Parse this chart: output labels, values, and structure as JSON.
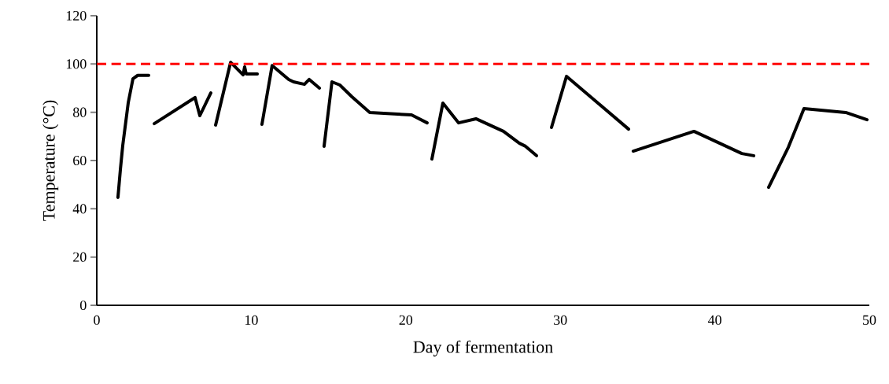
{
  "chart_data": {
    "type": "line",
    "xlabel": "Day of fermentation",
    "ylabel": "Temperature (°C)",
    "xlim": [
      0,
      50
    ],
    "ylim": [
      0,
      120
    ],
    "xticks": [
      0,
      10,
      20,
      30,
      40,
      50
    ],
    "yticks": [
      0,
      20,
      40,
      60,
      80,
      100,
      120
    ],
    "grid": false,
    "marker": "none",
    "line_style": "solid",
    "series": [
      {
        "color": "#000000",
        "x": [
          1.37,
          1.53,
          1.68,
          2.04,
          2.34,
          2.65,
          3.36,
          3.5,
          3.72,
          6.36,
          6.67,
          7.38,
          7.5,
          7.69,
          8.66,
          9.47,
          9.57,
          9.67,
          10.39,
          10.5,
          10.69,
          11.35,
          12.42,
          12.73,
          13.44,
          13.75,
          14.41,
          14.5,
          14.71,
          15.22,
          15.73,
          16.5,
          17.67,
          20.37,
          21.38,
          21.5,
          21.69,
          22.4,
          23.42,
          24.54,
          26.32,
          27.34,
          27.75,
          28.46,
          29.0,
          29.43,
          30.4,
          34.42,
          34.6,
          34.72,
          38.65,
          41.75,
          42.52,
          43.0,
          43.48,
          44.76,
          45.77,
          48.47,
          49.85
        ],
        "values": [
          44.7,
          56.4,
          66.2,
          84.1,
          93.9,
          95.3,
          95.3,
          null,
          75.3,
          86.1,
          78.6,
          88.0,
          null,
          74.7,
          100.7,
          95.5,
          98.8,
          95.9,
          95.9,
          null,
          75.0,
          99.4,
          93.6,
          92.6,
          91.6,
          93.6,
          90.0,
          null,
          65.9,
          92.6,
          91.3,
          86.5,
          79.9,
          78.9,
          75.6,
          null,
          60.6,
          83.8,
          75.6,
          77.3,
          72.1,
          67.2,
          65.9,
          62.0,
          null,
          73.7,
          94.9,
          73.0,
          null,
          63.9,
          72.1,
          62.9,
          62.0,
          null,
          48.9,
          65.5,
          81.5,
          79.9,
          76.9
        ]
      }
    ],
    "ref_lines": [
      {
        "axis": "y",
        "value": 100,
        "color": "#ff0000",
        "line_style": "dashed"
      }
    ]
  }
}
